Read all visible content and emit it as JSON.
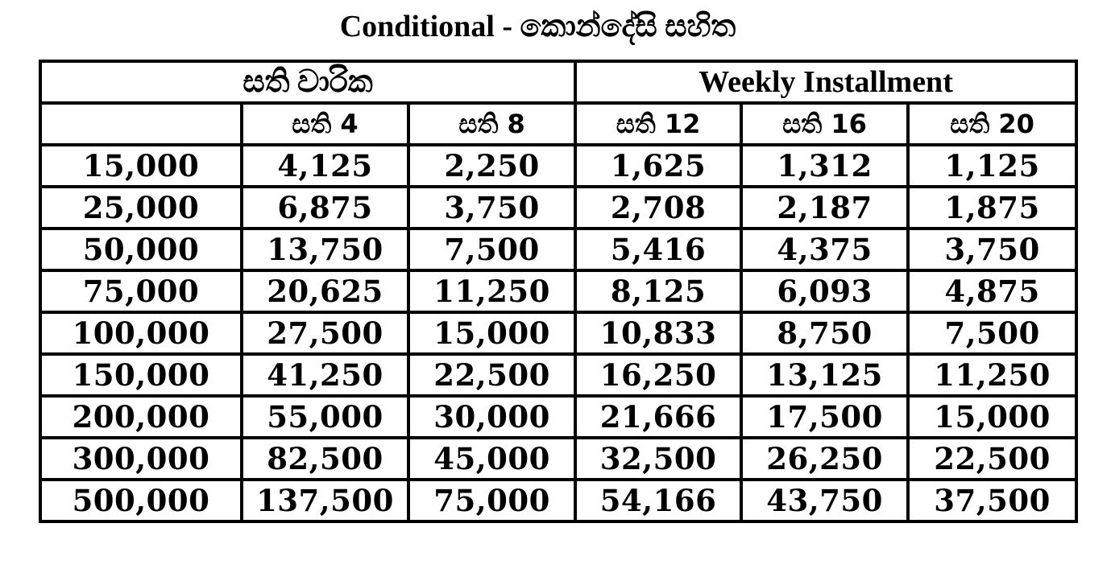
{
  "title": "Conditional  - කොන්දේසි සහිත",
  "table": {
    "group_headers": [
      "සති වාරික",
      "Weekly Installment"
    ],
    "column_headers": [
      "",
      "සති 4",
      "සති 8",
      "සති 12",
      "සති 16",
      "සති 20"
    ],
    "rows": [
      [
        "15,000",
        "4,125",
        "2,250",
        "1,625",
        "1,312",
        "1,125"
      ],
      [
        "25,000",
        "6,875",
        "3,750",
        "2,708",
        "2,187",
        "1,875"
      ],
      [
        "50,000",
        "13,750",
        "7,500",
        "5,416",
        "4,375",
        "3,750"
      ],
      [
        "75,000",
        "20,625",
        "11,250",
        "8,125",
        "6,093",
        "4,875"
      ],
      [
        "100,000",
        "27,500",
        "15,000",
        "10,833",
        "8,750",
        "7,500"
      ],
      [
        "150,000",
        "41,250",
        "22,500",
        "16,250",
        "13,125",
        "11,250"
      ],
      [
        "200,000",
        "55,000",
        "30,000",
        "21,666",
        "17,500",
        "15,000"
      ],
      [
        "300,000",
        "82,500",
        "45,000",
        "32,500",
        "26,250",
        "22,500"
      ],
      [
        "500,000",
        "137,500",
        "75,000",
        "54,166",
        "43,750",
        "37,500"
      ]
    ]
  }
}
